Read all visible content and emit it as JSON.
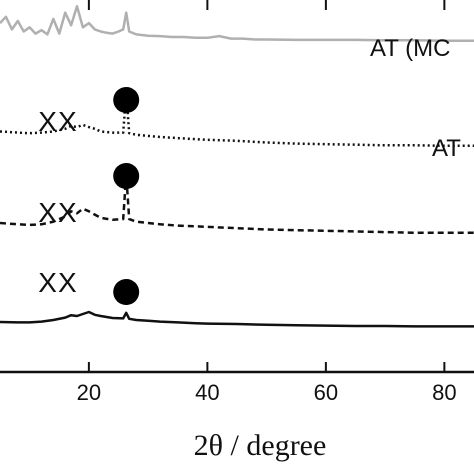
{
  "chart_data": {
    "type": "line",
    "xlabel": "2θ  / degree",
    "xlim": [
      5,
      85
    ],
    "x_ticks": [
      20,
      40,
      60,
      80
    ],
    "x_tick_labels": [
      "20",
      "40",
      "60",
      "80"
    ],
    "grid": false,
    "series": [
      {
        "name": "AT (MC",
        "color": "#b0b0b0",
        "style": "solid",
        "points": [
          [
            5,
            0.45
          ],
          [
            6,
            0.6
          ],
          [
            7,
            0.3
          ],
          [
            8,
            0.5
          ],
          [
            9,
            0.25
          ],
          [
            10,
            0.35
          ],
          [
            11,
            0.2
          ],
          [
            12,
            0.28
          ],
          [
            13,
            0.18
          ],
          [
            14,
            0.55
          ],
          [
            15,
            0.2
          ],
          [
            16,
            0.7
          ],
          [
            17,
            0.4
          ],
          [
            18,
            0.85
          ],
          [
            19,
            0.35
          ],
          [
            20,
            0.45
          ],
          [
            21,
            0.3
          ],
          [
            22,
            0.25
          ],
          [
            23,
            0.22
          ],
          [
            24,
            0.2
          ],
          [
            25,
            0.25
          ],
          [
            25.8,
            0.3
          ],
          [
            26.3,
            0.7
          ],
          [
            26.8,
            0.25
          ],
          [
            28,
            0.18
          ],
          [
            30,
            0.15
          ],
          [
            32,
            0.14
          ],
          [
            34,
            0.12
          ],
          [
            36,
            0.12
          ],
          [
            38,
            0.1
          ],
          [
            40,
            0.1
          ],
          [
            42,
            0.14
          ],
          [
            44,
            0.08
          ],
          [
            46,
            0.08
          ],
          [
            48,
            0.06
          ],
          [
            50,
            0.06
          ],
          [
            55,
            0.05
          ],
          [
            60,
            0.05
          ],
          [
            65,
            0.05
          ],
          [
            70,
            0.04
          ],
          [
            75,
            0.04
          ],
          [
            80,
            0.03
          ],
          [
            85,
            0.03
          ]
        ]
      },
      {
        "name": "AT",
        "color": "#111111",
        "style": "dotted",
        "points": [
          [
            5,
            0.3
          ],
          [
            8,
            0.28
          ],
          [
            10,
            0.27
          ],
          [
            12,
            0.28
          ],
          [
            14,
            0.3
          ],
          [
            16,
            0.35
          ],
          [
            17,
            0.4
          ],
          [
            18,
            0.38
          ],
          [
            19,
            0.42
          ],
          [
            20,
            0.38
          ],
          [
            21,
            0.35
          ],
          [
            22,
            0.3
          ],
          [
            24,
            0.28
          ],
          [
            25.8,
            0.28
          ],
          [
            26.3,
            1.0
          ],
          [
            26.8,
            0.27
          ],
          [
            28,
            0.24
          ],
          [
            30,
            0.22
          ],
          [
            32,
            0.2
          ],
          [
            35,
            0.18
          ],
          [
            38,
            0.16
          ],
          [
            40,
            0.15
          ],
          [
            45,
            0.13
          ],
          [
            50,
            0.1
          ],
          [
            55,
            0.08
          ],
          [
            60,
            0.07
          ],
          [
            65,
            0.06
          ],
          [
            70,
            0.05
          ],
          [
            75,
            0.05
          ],
          [
            80,
            0.04
          ],
          [
            85,
            0.04
          ]
        ]
      },
      {
        "name": "",
        "color": "#111111",
        "style": "dashed",
        "points": [
          [
            5,
            0.2
          ],
          [
            8,
            0.18
          ],
          [
            10,
            0.17
          ],
          [
            12,
            0.18
          ],
          [
            14,
            0.22
          ],
          [
            16,
            0.3
          ],
          [
            17,
            0.38
          ],
          [
            18,
            0.35
          ],
          [
            19,
            0.42
          ],
          [
            20,
            0.38
          ],
          [
            21,
            0.33
          ],
          [
            22,
            0.28
          ],
          [
            24,
            0.25
          ],
          [
            25.8,
            0.26
          ],
          [
            26.3,
            0.95
          ],
          [
            26.8,
            0.26
          ],
          [
            28,
            0.22
          ],
          [
            30,
            0.2
          ],
          [
            32,
            0.18
          ],
          [
            35,
            0.16
          ],
          [
            38,
            0.15
          ],
          [
            40,
            0.14
          ],
          [
            45,
            0.12
          ],
          [
            50,
            0.1
          ],
          [
            55,
            0.09
          ],
          [
            60,
            0.08
          ],
          [
            65,
            0.07
          ],
          [
            70,
            0.06
          ],
          [
            75,
            0.05
          ],
          [
            80,
            0.05
          ],
          [
            85,
            0.05
          ]
        ]
      },
      {
        "name": "",
        "color": "#111111",
        "style": "solid",
        "points": [
          [
            5,
            0.15
          ],
          [
            8,
            0.14
          ],
          [
            10,
            0.14
          ],
          [
            12,
            0.16
          ],
          [
            14,
            0.2
          ],
          [
            16,
            0.26
          ],
          [
            17,
            0.32
          ],
          [
            18,
            0.3
          ],
          [
            19,
            0.35
          ],
          [
            20,
            0.4
          ],
          [
            21,
            0.33
          ],
          [
            22,
            0.3
          ],
          [
            24,
            0.25
          ],
          [
            25.8,
            0.24
          ],
          [
            26.3,
            0.38
          ],
          [
            26.8,
            0.23
          ],
          [
            28,
            0.2
          ],
          [
            30,
            0.18
          ],
          [
            32,
            0.16
          ],
          [
            35,
            0.14
          ],
          [
            38,
            0.12
          ],
          [
            40,
            0.11
          ],
          [
            45,
            0.1
          ],
          [
            50,
            0.08
          ],
          [
            55,
            0.07
          ],
          [
            60,
            0.06
          ],
          [
            65,
            0.05
          ],
          [
            70,
            0.05
          ],
          [
            75,
            0.04
          ],
          [
            80,
            0.04
          ],
          [
            85,
            0.04
          ]
        ]
      }
    ],
    "annotations": {
      "xx_text": "XX",
      "xx_marks": [
        {
          "series": 1,
          "x": 18.5
        },
        {
          "series": 2,
          "x": 18.5
        },
        {
          "series": 3,
          "x": 18.5
        }
      ],
      "circle_marks": [
        {
          "series": 1,
          "x": 26.3
        },
        {
          "series": 2,
          "x": 26.3
        },
        {
          "series": 3,
          "x": 26.3
        }
      ]
    }
  }
}
